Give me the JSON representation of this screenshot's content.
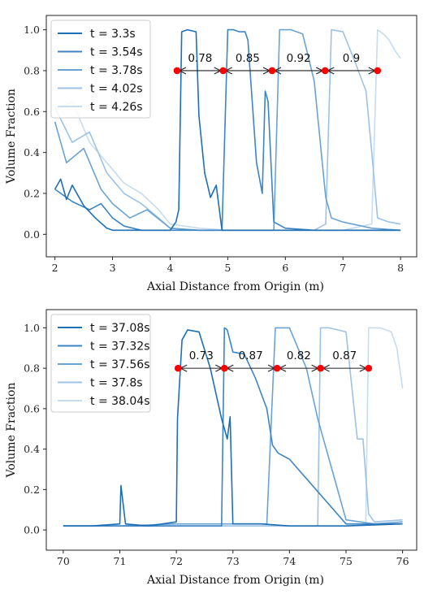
{
  "chart_data": [
    {
      "type": "line",
      "xlabel": "Axial Distance from Origin (m)",
      "ylabel": "Volume Fraction",
      "xlim": [
        1.85,
        8.28
      ],
      "ylim": [
        -0.11,
        1.07
      ],
      "xticks": [
        "2",
        "3",
        "4",
        "5",
        "6",
        "7",
        "8"
      ],
      "yticks": [
        "0.0",
        "0.2",
        "0.4",
        "0.6",
        "0.8",
        "1.0"
      ],
      "legend_position": "top-left",
      "colors": [
        "#1f6fb4",
        "#3d85c2",
        "#6aa3d2",
        "#9cc3e4",
        "#c6ddef"
      ],
      "series": [
        {
          "name": "t = 3.3s",
          "x": [
            2.0,
            2.1,
            2.2,
            2.3,
            2.5,
            2.7,
            2.9,
            3.0,
            3.2,
            3.5,
            3.8,
            4.0,
            4.1,
            4.15,
            4.2,
            4.3,
            4.45,
            4.5,
            4.6,
            4.7,
            4.8,
            4.9,
            5.5,
            6.0,
            7.0,
            8.0
          ],
          "y": [
            0.22,
            0.27,
            0.17,
            0.24,
            0.14,
            0.08,
            0.03,
            0.02,
            0.02,
            0.02,
            0.02,
            0.02,
            0.06,
            0.12,
            0.99,
            1.0,
            0.99,
            0.58,
            0.3,
            0.18,
            0.24,
            0.02,
            0.02,
            0.02,
            0.02,
            0.02
          ]
        },
        {
          "name": "t = 3.54s",
          "x": [
            2.0,
            2.3,
            2.6,
            2.8,
            3.0,
            3.2,
            3.5,
            3.8,
            4.0,
            4.5,
            4.9,
            5.0,
            5.1,
            5.2,
            5.3,
            5.35,
            5.5,
            5.6,
            5.65,
            5.7,
            5.8,
            6.0,
            6.5,
            7.0,
            7.5,
            8.0
          ],
          "y": [
            0.22,
            0.16,
            0.12,
            0.15,
            0.08,
            0.04,
            0.02,
            0.02,
            0.02,
            0.02,
            0.02,
            1.0,
            1.0,
            0.99,
            0.99,
            0.95,
            0.35,
            0.2,
            0.7,
            0.65,
            0.06,
            0.03,
            0.02,
            0.02,
            0.02,
            0.02
          ]
        },
        {
          "name": "t = 3.78s",
          "x": [
            2.0,
            2.2,
            2.5,
            2.8,
            3.0,
            3.3,
            3.6,
            4.0,
            4.5,
            5.0,
            5.5,
            5.8,
            5.9,
            6.1,
            6.3,
            6.5,
            6.7,
            6.8,
            7.0,
            7.5,
            8.0
          ],
          "y": [
            0.55,
            0.35,
            0.42,
            0.22,
            0.15,
            0.08,
            0.12,
            0.03,
            0.02,
            0.02,
            0.02,
            0.02,
            1.0,
            1.0,
            0.98,
            0.75,
            0.18,
            0.08,
            0.06,
            0.03,
            0.02
          ]
        },
        {
          "name": "t = 4.02s",
          "x": [
            2.0,
            2.3,
            2.6,
            2.9,
            3.2,
            3.5,
            3.8,
            4.0,
            4.5,
            5.0,
            6.0,
            6.5,
            6.7,
            6.8,
            7.0,
            7.2,
            7.4,
            7.5,
            7.6,
            7.8,
            8.0
          ],
          "y": [
            0.62,
            0.45,
            0.5,
            0.3,
            0.2,
            0.15,
            0.08,
            0.03,
            0.02,
            0.02,
            0.02,
            0.02,
            0.05,
            1.0,
            0.99,
            0.85,
            0.7,
            0.4,
            0.08,
            0.06,
            0.05
          ]
        },
        {
          "name": "t = 4.26s",
          "x": [
            2.0,
            2.3,
            2.6,
            2.9,
            3.2,
            3.5,
            3.8,
            4.0,
            4.5,
            5.0,
            6.0,
            7.0,
            7.5,
            7.6,
            7.7,
            7.8,
            7.9,
            8.0
          ],
          "y": [
            0.6,
            0.65,
            0.45,
            0.35,
            0.25,
            0.2,
            0.12,
            0.05,
            0.03,
            0.02,
            0.02,
            0.02,
            0.05,
            1.0,
            0.98,
            0.95,
            0.9,
            0.86
          ]
        }
      ],
      "markers": [
        4.12,
        4.92,
        5.77,
        6.69,
        7.6
      ],
      "marker_y": 0.8,
      "annotations": [
        "0.78",
        "0.85",
        "0.92",
        "0.9"
      ]
    },
    {
      "type": "line",
      "xlabel": "Axial Distance from Origin (m)",
      "ylabel": "Volume Fraction",
      "xlim": [
        69.7,
        76.25
      ],
      "ylim": [
        -0.1,
        1.09
      ],
      "xticks": [
        "70",
        "71",
        "72",
        "73",
        "74",
        "75",
        "76"
      ],
      "yticks": [
        "0.0",
        "0.2",
        "0.4",
        "0.6",
        "0.8",
        "1.0"
      ],
      "legend_position": "top-left",
      "colors": [
        "#1f6fb4",
        "#3d85c2",
        "#6aa3d2",
        "#9cc3e4",
        "#c6ddef"
      ],
      "series": [
        {
          "name": "t = 37.08s",
          "x": [
            70.0,
            70.5,
            71.0,
            71.02,
            71.1,
            71.5,
            72.0,
            72.02,
            72.1,
            72.2,
            72.4,
            72.6,
            72.8,
            72.9,
            72.95,
            73.0,
            73.5,
            74.0,
            75.0,
            76.0
          ],
          "y": [
            0.02,
            0.02,
            0.03,
            0.22,
            0.03,
            0.02,
            0.04,
            0.55,
            0.94,
            0.99,
            0.98,
            0.8,
            0.55,
            0.45,
            0.56,
            0.03,
            0.03,
            0.02,
            0.02,
            0.03
          ]
        },
        {
          "name": "t = 37.32s",
          "x": [
            70.0,
            71.0,
            72.0,
            72.8,
            72.85,
            72.9,
            73.0,
            73.2,
            73.4,
            73.6,
            73.7,
            73.8,
            74.0,
            75.0,
            76.0
          ],
          "y": [
            0.02,
            0.02,
            0.02,
            0.02,
            1.0,
            0.99,
            0.88,
            0.87,
            0.75,
            0.6,
            0.42,
            0.38,
            0.35,
            0.03,
            0.03
          ]
        },
        {
          "name": "t = 37.56s",
          "x": [
            70.0,
            71.0,
            72.0,
            73.0,
            73.6,
            73.75,
            74.0,
            74.3,
            74.5,
            74.8,
            75.0,
            75.5,
            76.0
          ],
          "y": [
            0.02,
            0.02,
            0.03,
            0.03,
            0.03,
            1.0,
            1.0,
            0.8,
            0.55,
            0.25,
            0.05,
            0.03,
            0.04
          ]
        },
        {
          "name": "t = 37.8s",
          "x": [
            70.0,
            71.0,
            72.0,
            73.0,
            74.0,
            74.5,
            74.55,
            74.7,
            75.0,
            75.2,
            75.3,
            75.4,
            75.5,
            76.0
          ],
          "y": [
            0.02,
            0.02,
            0.02,
            0.02,
            0.02,
            0.02,
            1.0,
            1.0,
            0.98,
            0.45,
            0.45,
            0.08,
            0.04,
            0.05
          ]
        },
        {
          "name": "t = 38.04s",
          "x": [
            70.0,
            71.0,
            72.0,
            73.0,
            74.0,
            75.0,
            75.35,
            75.4,
            75.6,
            75.8,
            75.9,
            76.0
          ],
          "y": [
            0.02,
            0.02,
            0.02,
            0.02,
            0.02,
            0.02,
            0.03,
            1.0,
            1.0,
            0.98,
            0.9,
            0.7
          ]
        }
      ],
      "markers": [
        72.03,
        72.85,
        73.78,
        74.55,
        75.4
      ],
      "marker_y": 0.8,
      "annotations": [
        "0.73",
        "0.87",
        "0.82",
        "0.87"
      ]
    }
  ]
}
